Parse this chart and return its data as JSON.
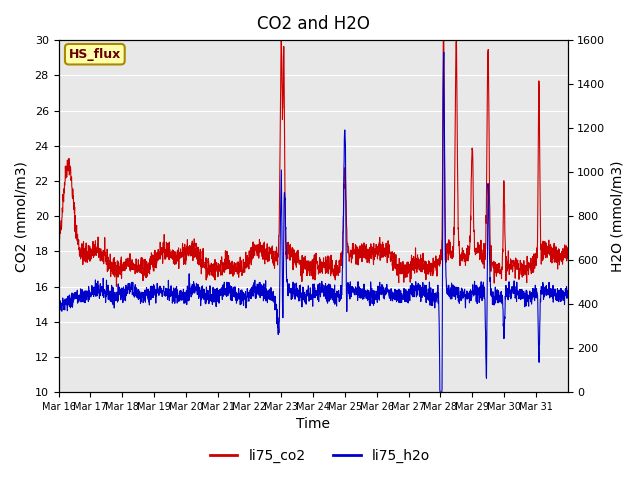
{
  "title": "CO2 and H2O",
  "xlabel": "Time",
  "ylabel_left": "CO2 (mmol/m3)",
  "ylabel_right": "H2O (mmol/m3)",
  "ylim_left": [
    10,
    30
  ],
  "ylim_right": [
    0,
    1600
  ],
  "yticks_left": [
    10,
    12,
    14,
    16,
    18,
    20,
    22,
    24,
    26,
    28,
    30
  ],
  "yticks_right": [
    0,
    200,
    400,
    600,
    800,
    1000,
    1200,
    1400,
    1600
  ],
  "xtick_labels": [
    "Mar 16",
    "Mar 17",
    "Mar 18",
    "Mar 19",
    "Mar 20",
    "Mar 21",
    "Mar 22",
    "Mar 23",
    "Mar 24",
    "Mar 25",
    "Mar 26",
    "Mar 27",
    "Mar 28",
    "Mar 29",
    "Mar 30",
    "Mar 31"
  ],
  "co2_color": "#cc0000",
  "h2o_color": "#0000cc",
  "background_color": "#e8e8e8",
  "annotation_text": "HS_flux",
  "annotation_bg": "#ffffaa",
  "annotation_border": "#aa8800",
  "legend_labels": [
    "li75_co2",
    "li75_h2o"
  ],
  "title_fontsize": 12,
  "axis_fontsize": 10,
  "tick_fontsize": 8
}
